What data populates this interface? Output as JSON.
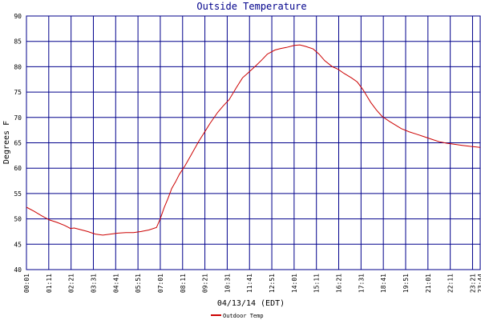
{
  "chart_data": {
    "type": "line",
    "title": "Outside Temperature",
    "xlabel": "04/13/14 (EDT)",
    "ylabel": "Degrees F",
    "ylim": [
      40,
      90
    ],
    "yticks": [
      "40",
      "45",
      "50",
      "55",
      "60",
      "65",
      "70",
      "75",
      "80",
      "85",
      "90"
    ],
    "x_ticks": [
      "00:01",
      "01:11",
      "02:21",
      "03:31",
      "04:41",
      "05:51",
      "07:01",
      "08:11",
      "09:21",
      "10:31",
      "11:41",
      "12:51",
      "14:01",
      "15:11",
      "16:21",
      "17:31",
      "18:41",
      "19:51",
      "21:01",
      "22:11",
      "23:21",
      "23:44"
    ],
    "grid": true,
    "legend": "bottom-center",
    "series": [
      {
        "name": "Outdoor Temp",
        "color": "#cc0000",
        "x": [
          0,
          0.4,
          0.8,
          1.2,
          1.6,
          2.0,
          2.3,
          2.5,
          2.8,
          3.2,
          3.6,
          4.0,
          4.4,
          4.8,
          5.2,
          5.6,
          6.0,
          6.4,
          6.8,
          7.0,
          7.2,
          7.4,
          7.6,
          7.8,
          8.0,
          8.3,
          8.6,
          9.0,
          9.3,
          9.6,
          10.0,
          10.3,
          10.6,
          11.0,
          11.3,
          11.6,
          12.0,
          12.3,
          12.6,
          13.0,
          13.3,
          13.6,
          14.0,
          14.3,
          14.6,
          15.0,
          15.3,
          15.6,
          16.0,
          16.3,
          16.6,
          17.0,
          17.3,
          17.6,
          18.0,
          18.3,
          18.6,
          19.0,
          19.3,
          19.6,
          20.0,
          20.4,
          20.8,
          21.2,
          21.6,
          22.0,
          22.4,
          22.8,
          23.2,
          23.733
        ],
        "y": [
          52.3,
          51.5,
          50.6,
          49.8,
          49.3,
          48.7,
          48.1,
          48.2,
          47.9,
          47.5,
          47.0,
          46.8,
          47.0,
          47.2,
          47.3,
          47.3,
          47.5,
          47.8,
          48.3,
          50.0,
          52.2,
          54.0,
          56.0,
          57.3,
          58.8,
          60.5,
          62.5,
          65.2,
          67.0,
          68.8,
          71.0,
          72.3,
          73.5,
          76.0,
          77.8,
          78.8,
          80.2,
          81.3,
          82.5,
          83.3,
          83.6,
          83.8,
          84.2,
          84.3,
          84.0,
          83.5,
          82.5,
          81.2,
          80.0,
          79.5,
          78.7,
          77.8,
          77.0,
          75.5,
          73.0,
          71.5,
          70.2,
          69.2,
          68.5,
          67.8,
          67.2,
          66.7,
          66.2,
          65.7,
          65.2,
          64.9,
          64.7,
          64.5,
          64.3,
          64.1
        ]
      }
    ]
  }
}
